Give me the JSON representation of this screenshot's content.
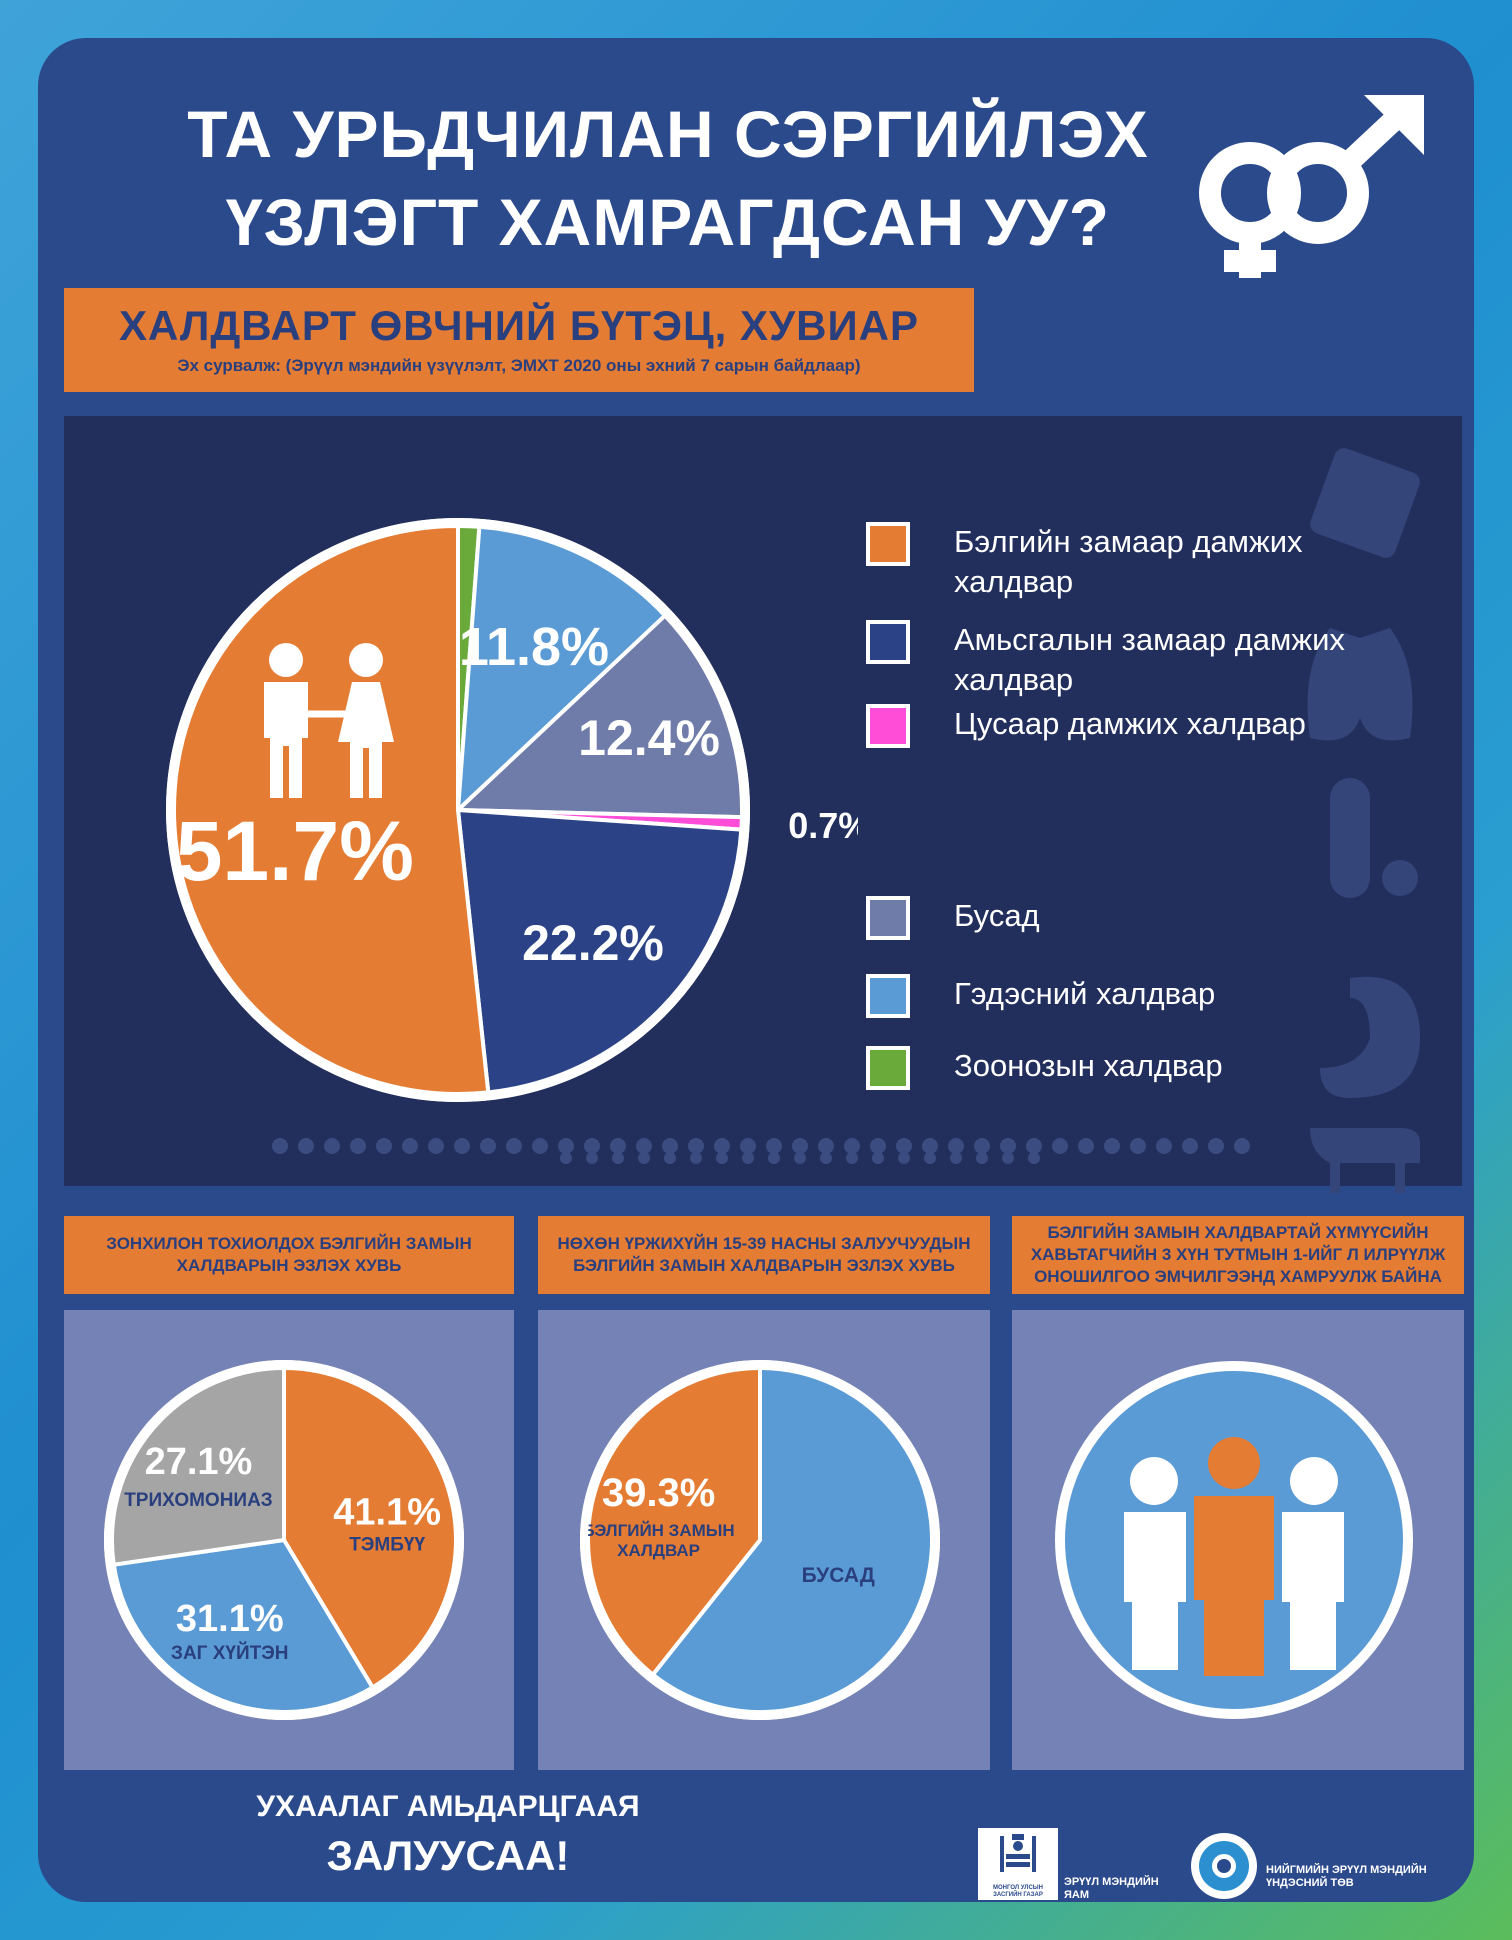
{
  "title": {
    "line1": "ТА УРЬДЧИЛАН СЭРГИЙЛЭХ",
    "line2": "ҮЗЛЭГТ ХАМРАГДСАН УУ?"
  },
  "section": {
    "title": "ХАЛДВАРТ ӨВЧНИЙ БҮТЭЦ, ХУВИАР",
    "source": "Эх сурвалж: (Эрүүл мэндийн үзүүлэлт, ЭМХТ 2020 оны эхний 7 сарын байдлаар)"
  },
  "colors": {
    "orange": "#e47c34",
    "navy": "#2b4386",
    "magenta": "#ff4dd8",
    "slate": "#6f7ba9",
    "lightblue": "#5b9bd5",
    "green": "#6aaa3a",
    "gray": "#a5a5a5"
  },
  "legend": [
    {
      "label": "Бэлгийн замаар дамжих халдвар",
      "color": "#e47c34"
    },
    {
      "label": "Амьсгалын замаар дамжих халдвар",
      "color": "#2b4386"
    },
    {
      "label": "Цусаар дамжих халдвар",
      "color": "#ff4dd8"
    },
    {
      "label": "Бусад",
      "color": "#6f7ba9"
    },
    {
      "label": "Гэдэсний халдвар",
      "color": "#5b9bd5"
    },
    {
      "label": "Зоонозын халдвар",
      "color": "#6aaa3a"
    }
  ],
  "chart_data": [
    {
      "type": "pie",
      "title": "ХАЛДВАРТ ӨВЧНИЙ БҮТЭЦ, ХУВИАР",
      "slices": [
        {
          "label": "Зоонозын халдвар",
          "value": 1.2,
          "text": "1.2%",
          "color": "#6aaa3a"
        },
        {
          "label": "Гэдэсний халдвар",
          "value": 11.8,
          "text": "11.8%",
          "color": "#5b9bd5"
        },
        {
          "label": "Бусад",
          "value": 12.4,
          "text": "12.4%",
          "color": "#6f7ba9"
        },
        {
          "label": "Цусаар дамжих халдвар",
          "value": 0.7,
          "text": "0.7%",
          "color": "#ff4dd8"
        },
        {
          "label": "Амьсгалын замаар дамжих халдвар",
          "value": 22.2,
          "text": "22.2%",
          "color": "#2b4386"
        },
        {
          "label": "Бэлгийн замаар дамжих халдвар",
          "value": 51.7,
          "text": "51.7%",
          "color": "#e47c34"
        }
      ]
    },
    {
      "type": "pie",
      "title": "ЗОНХИЛОН ТОХИОЛДОХ БЭЛГИЙН ЗАМЫН ХАЛДВАРЫН ЭЗЛЭХ ХУВЬ",
      "slices": [
        {
          "label": "ТЭМБҮҮ",
          "value": 41.1,
          "text": "41.1%",
          "color": "#e47c34"
        },
        {
          "label": "ЗАГ ХҮЙТЭН",
          "value": 31.1,
          "text": "31.1%",
          "color": "#5b9bd5"
        },
        {
          "label": "ТРИХОМОНИАЗ",
          "value": 27.1,
          "text": "27.1%",
          "color": "#a5a5a5"
        }
      ]
    },
    {
      "type": "pie",
      "title": "НӨХӨН ҮРЖИХҮЙН 15-39 НАСНЫ ЗАЛУУЧУУДЫН БЭЛГИЙН ЗАМЫН ХАЛДВАРЫН ЭЗЛЭХ ХУВЬ",
      "slices": [
        {
          "label": "БУСАД",
          "value": 60.7,
          "text": "",
          "color": "#5b9bd5"
        },
        {
          "label": "БЭЛГИЙН ЗАМЫН ХАЛДВАР",
          "value": 39.3,
          "text": "39.3%",
          "color": "#e47c34"
        }
      ]
    }
  ],
  "box_titles": [
    "ЗОНХИЛОН ТОХИОЛДОХ БЭЛГИЙН ЗАМЫН ХАЛДВАРЫН ЭЗЛЭХ ХУВЬ",
    "НӨХӨН ҮРЖИХҮЙН 15-39 НАСНЫ ЗАЛУУЧУУДЫН БЭЛГИЙН ЗАМЫН ХАЛДВАРЫН ЭЗЛЭХ ХУВЬ",
    "БЭЛГИЙН ЗАМЫН ХАЛДВАРТАЙ ХҮМҮҮСИЙН ХАВЬТАГЧИЙН 3 ХҮН ТУТМЫН 1-ИЙГ Л ИЛРҮҮЛЖ ОНОШИЛГОО ЭМЧИЛГЭЭНД ХАМРУУЛЖ БАЙНА"
  ],
  "slogan": {
    "line1": "УХААЛАГ АМЬДАРЦГААЯ",
    "line2": "ЗАЛУУСАА!"
  },
  "footer": {
    "logo1_caption": "МОНГОЛ УЛСЫН ЗАСГИЙН ГАЗАР",
    "org1": "ЭРҮҮЛ МЭНДИЙН ЯАМ",
    "org2": "НИЙГМИЙН ЭРҮҮЛ МЭНДИЙН ҮНДЭСНИЙ ТӨВ"
  }
}
